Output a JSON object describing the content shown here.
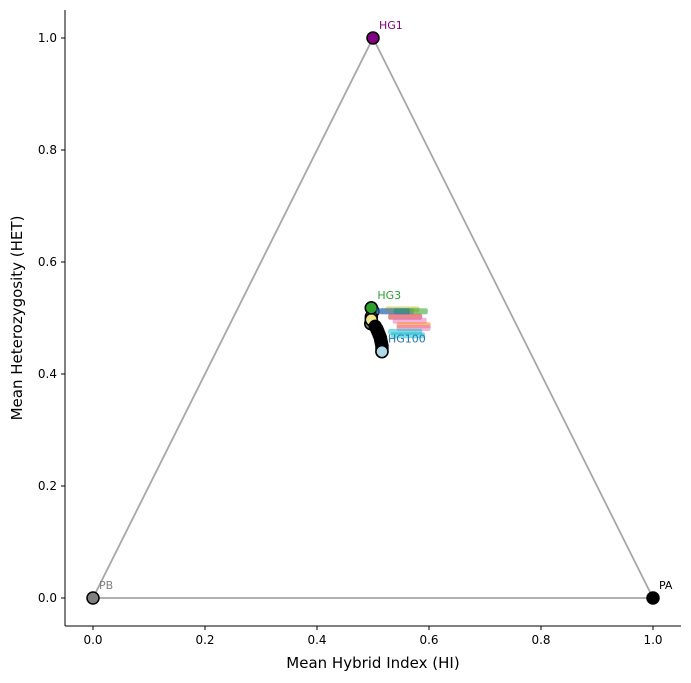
{
  "chart_data": {
    "type": "scatter",
    "title": "",
    "xlabel": "Mean Hybrid Index (HI)",
    "ylabel": "Mean Heterozygosity (HET)",
    "xlim": [
      -0.05,
      1.05
    ],
    "ylim": [
      -0.05,
      1.05
    ],
    "xticks": [
      "0.0",
      "0.2",
      "0.4",
      "0.6",
      "0.8",
      "1.0"
    ],
    "yticks": [
      "0.0",
      "0.2",
      "0.4",
      "0.6",
      "0.8",
      "1.0"
    ],
    "grid": false,
    "legend": "none",
    "triangle": {
      "color": "#a6a6a6",
      "vertices": [
        [
          0,
          0
        ],
        [
          0.5,
          1
        ],
        [
          1,
          0
        ]
      ]
    },
    "labeled_points": [
      {
        "label": "PB",
        "x": 0.0,
        "y": 0.0,
        "color": "#808080",
        "label_color": "#808080"
      },
      {
        "label": "PA",
        "x": 1.0,
        "y": 0.0,
        "color": "#000000",
        "label_color": "#000000"
      },
      {
        "label": "HG1",
        "x": 0.5,
        "y": 1.0,
        "color": "#800080",
        "label_color": "#800080"
      },
      {
        "label": "HG3",
        "x": 0.497,
        "y": 0.518,
        "color": "#2ca02c",
        "label_color": "#2ca02c"
      },
      {
        "label": "HG100",
        "x": 0.516,
        "y": 0.44,
        "color": "#add8e6",
        "label_color": "#1f77b4"
      }
    ],
    "cluster_labels": [
      {
        "x": 0.505,
        "y": 0.505,
        "color": "#9467bd"
      },
      {
        "x": 0.515,
        "y": 0.508,
        "color": "#bcbd22"
      },
      {
        "x": 0.53,
        "y": 0.505,
        "color": "#2ca02c"
      },
      {
        "x": 0.52,
        "y": 0.495,
        "color": "#d62728"
      },
      {
        "x": 0.528,
        "y": 0.488,
        "color": "#e377c2"
      },
      {
        "x": 0.535,
        "y": 0.48,
        "color": "#ff7f0e"
      },
      {
        "x": 0.535,
        "y": 0.475,
        "color": "#e377c2"
      },
      {
        "x": 0.52,
        "y": 0.468,
        "color": "#17becf"
      },
      {
        "x": 0.525,
        "y": 0.462,
        "color": "#17becf"
      },
      {
        "x": 0.498,
        "y": 0.505,
        "color": "#1f77b4"
      }
    ],
    "cluster_points": [
      {
        "x": 0.497,
        "y": 0.518,
        "color": "#2ca02c"
      },
      {
        "x": 0.5,
        "y": 0.512,
        "color": "#9467bd"
      },
      {
        "x": 0.497,
        "y": 0.502,
        "color": "#ff7f0e"
      },
      {
        "x": 0.496,
        "y": 0.49,
        "color": "#7f7f7f"
      },
      {
        "x": 0.497,
        "y": 0.497,
        "color": "#f0e68c"
      },
      {
        "x": 0.504,
        "y": 0.485,
        "color": "#000000"
      },
      {
        "x": 0.507,
        "y": 0.48,
        "color": "#000000"
      },
      {
        "x": 0.509,
        "y": 0.475,
        "color": "#000000"
      },
      {
        "x": 0.511,
        "y": 0.47,
        "color": "#000000"
      },
      {
        "x": 0.513,
        "y": 0.465,
        "color": "#000000"
      },
      {
        "x": 0.514,
        "y": 0.46,
        "color": "#000000"
      },
      {
        "x": 0.515,
        "y": 0.455,
        "color": "#000000"
      },
      {
        "x": 0.516,
        "y": 0.45,
        "color": "#000000"
      },
      {
        "x": 0.516,
        "y": 0.445,
        "color": "#000000"
      },
      {
        "x": 0.516,
        "y": 0.44,
        "color": "#add8e6"
      }
    ]
  }
}
